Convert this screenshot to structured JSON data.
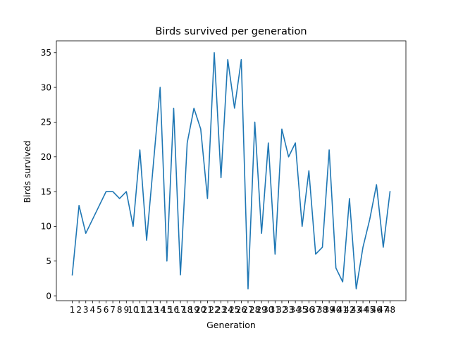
{
  "chart_data": {
    "type": "line",
    "title": "Birds survived per generation",
    "xlabel": "Generation",
    "ylabel": "Birds survived",
    "x": [
      1,
      2,
      3,
      4,
      5,
      6,
      7,
      8,
      9,
      10,
      11,
      12,
      13,
      14,
      15,
      16,
      17,
      18,
      19,
      20,
      21,
      22,
      23,
      24,
      25,
      26,
      27,
      28,
      29,
      30,
      31,
      32,
      33,
      34,
      35,
      36,
      37,
      38,
      39,
      40,
      41,
      42,
      43,
      44,
      45,
      46,
      47,
      48
    ],
    "xtick_labels": [
      "1",
      "2",
      "3",
      "4",
      "5",
      "6",
      "7",
      "8",
      "9",
      "10",
      "11",
      "12",
      "13",
      "14",
      "15",
      "16",
      "17",
      "18",
      "19",
      "20",
      "21",
      "22",
      "23",
      "24",
      "25",
      "26",
      "27",
      "28",
      "29",
      "30",
      "31",
      "32",
      "33",
      "34",
      "35",
      "36",
      "37",
      "38",
      "39",
      "40",
      "41",
      "42",
      "43",
      "44",
      "45",
      "46",
      "47",
      "48"
    ],
    "series": [
      {
        "values": [
          3,
          13,
          9,
          11,
          13,
          15,
          15,
          14,
          15,
          10,
          21,
          8,
          19,
          30,
          5,
          27,
          3,
          22,
          27,
          24,
          14,
          35,
          17,
          34,
          27,
          34,
          1,
          25,
          9,
          22,
          6,
          24,
          20,
          22,
          10,
          18,
          6,
          7,
          21,
          4,
          2,
          14,
          1,
          7,
          11,
          16,
          7,
          15
        ],
        "color": "#1f77b4"
      }
    ],
    "ylim": [
      -0.7,
      36.7
    ],
    "yticks": [
      0,
      5,
      10,
      15,
      20,
      25,
      30,
      35
    ],
    "grid": false,
    "legend": "none"
  }
}
